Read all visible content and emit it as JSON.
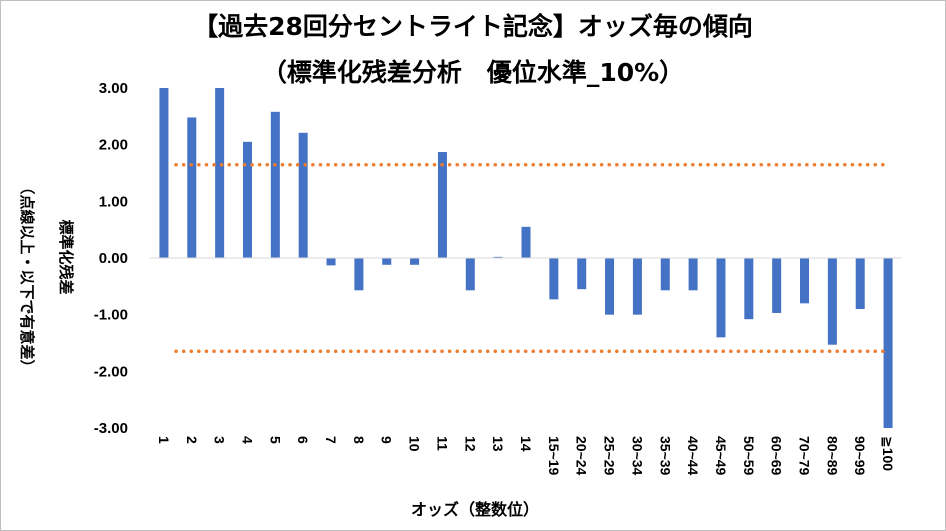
{
  "title_line1": "【過去28回分セントライト記念】オッズ毎の傾向",
  "title_line2": "（標準化残差分析　優位水準_10%）",
  "chart_data": {
    "type": "bar",
    "xlabel": "オッズ（整数位）",
    "ylabel_line1": "標準化残差",
    "ylabel_line2": "（点線以上・以下で有意差）",
    "ylim": [
      -3.0,
      3.0
    ],
    "yticks": [
      "3.00",
      "2.00",
      "1.00",
      "0.00",
      "-1.00",
      "-2.00",
      "-3.00"
    ],
    "ytick_values": [
      3,
      2,
      1,
      0,
      -1,
      -2,
      -3
    ],
    "categories": [
      "1",
      "2",
      "3",
      "4",
      "5",
      "6",
      "7",
      "8",
      "9",
      "10",
      "11",
      "12",
      "13",
      "14",
      "15~19",
      "20~24",
      "25~29",
      "30~34",
      "35~39",
      "40~44",
      "45~49",
      "50~59",
      "60~69",
      "70~79",
      "80~89",
      "90~99",
      "≧100"
    ],
    "values": [
      3.0,
      2.48,
      3.0,
      2.05,
      2.58,
      2.21,
      -0.13,
      -0.57,
      -0.12,
      -0.12,
      1.87,
      -0.57,
      0.02,
      0.55,
      -0.73,
      -0.55,
      -1.0,
      -1.0,
      -0.57,
      -0.57,
      -1.4,
      -1.08,
      -0.97,
      -0.8,
      -1.53,
      -0.9,
      -3.0
    ],
    "threshold_lines": [
      1.645,
      -1.645
    ],
    "bar_color": "#4472c4",
    "threshold_color": "#ed7d31",
    "grid": false,
    "legend": "none"
  }
}
